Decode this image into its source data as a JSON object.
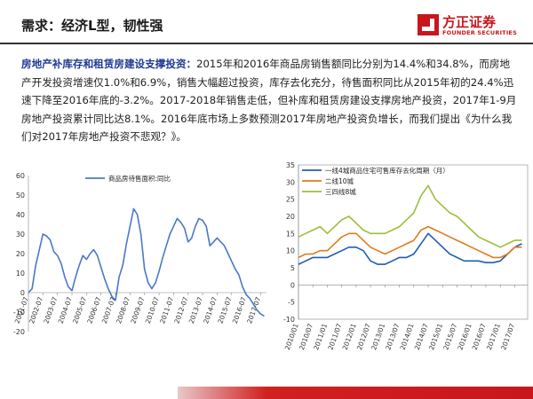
{
  "header": {
    "title": "需求：经济L型，韧性强",
    "logo_cn": "方正证券",
    "logo_en": "FOUNDER SECURITIES"
  },
  "body": {
    "lead": "房地产补库存和租赁房建设支撑投资：",
    "text": "2015年和2016年商品房销售额同比分别为14.4%和34.8%，而房地产开发投资增速仅1.0%和6.9%，销售大幅超过投资，库存去化充分，待售面积同比从2015年初的24.4%迅速下降至2016年底的-3.2%。2017-2018年销售走低，但补库和租赁房建设支撑房地产投资，2017年1-9月房地产投资累计同比达8.1%。2016年底市场上多数预测2017年房地产投资负增长，而我们提出《为什么我们对2017年房地产投资不悲观？》。"
  },
  "colors": {
    "brand": "#c8161d",
    "lead_text": "#1f3a93",
    "chart1_line": "#4a78c8",
    "tier1": "#1f5fb0",
    "tier2": "#e07b1f",
    "tier3": "#9cbf3a"
  },
  "chart_data": [
    {
      "type": "line",
      "title": "",
      "xlabel": "",
      "ylabel": "",
      "ylim": [
        -20,
        60
      ],
      "yticks": [
        -20,
        -10,
        0,
        10,
        20,
        30,
        40,
        50,
        60
      ],
      "xticks": [
        "2001-07",
        "2002-07",
        "2003-07",
        "2004-07",
        "2005-07",
        "2006-07",
        "2007-07",
        "2008-07",
        "2009-07",
        "2010-07",
        "2011-07",
        "2012-07",
        "2013-07",
        "2014-07",
        "2015-07",
        "2016-07",
        "2017-07"
      ],
      "legend_position": "top-center",
      "series": [
        {
          "name": "商品房待售面积:同比",
          "color": "#4a78c8",
          "points": [
            [
              2001.5,
              0
            ],
            [
              2001.75,
              2
            ],
            [
              2002.0,
              14
            ],
            [
              2002.25,
              22
            ],
            [
              2002.5,
              30
            ],
            [
              2002.75,
              29
            ],
            [
              2003.0,
              27
            ],
            [
              2003.25,
              21
            ],
            [
              2003.5,
              19
            ],
            [
              2003.75,
              15
            ],
            [
              2004.0,
              8
            ],
            [
              2004.25,
              3
            ],
            [
              2004.5,
              1
            ],
            [
              2004.75,
              8
            ],
            [
              2005.0,
              14
            ],
            [
              2005.25,
              19
            ],
            [
              2005.5,
              17
            ],
            [
              2005.75,
              20
            ],
            [
              2006.0,
              22
            ],
            [
              2006.25,
              19
            ],
            [
              2006.5,
              13
            ],
            [
              2006.75,
              7
            ],
            [
              2007.0,
              2
            ],
            [
              2007.25,
              -2
            ],
            [
              2007.5,
              -4
            ],
            [
              2007.75,
              8
            ],
            [
              2008.0,
              14
            ],
            [
              2008.25,
              25
            ],
            [
              2008.5,
              34
            ],
            [
              2008.75,
              43
            ],
            [
              2009.0,
              40
            ],
            [
              2009.25,
              30
            ],
            [
              2009.5,
              12
            ],
            [
              2009.75,
              5
            ],
            [
              2010.0,
              2
            ],
            [
              2010.25,
              5
            ],
            [
              2010.5,
              11
            ],
            [
              2010.75,
              18
            ],
            [
              2011.0,
              24
            ],
            [
              2011.25,
              30
            ],
            [
              2011.5,
              34
            ],
            [
              2011.75,
              38
            ],
            [
              2012.0,
              36
            ],
            [
              2012.25,
              33
            ],
            [
              2012.5,
              26
            ],
            [
              2012.75,
              28
            ],
            [
              2013.0,
              34
            ],
            [
              2013.25,
              38
            ],
            [
              2013.5,
              37
            ],
            [
              2013.75,
              34
            ],
            [
              2014.0,
              24
            ],
            [
              2014.25,
              26
            ],
            [
              2014.5,
              28
            ],
            [
              2014.75,
              26
            ],
            [
              2015.0,
              24
            ],
            [
              2015.25,
              20
            ],
            [
              2015.5,
              16
            ],
            [
              2015.75,
              12
            ],
            [
              2016.0,
              9
            ],
            [
              2016.25,
              3
            ],
            [
              2016.5,
              -1
            ],
            [
              2016.75,
              -3
            ],
            [
              2017.0,
              -6
            ],
            [
              2017.25,
              -9
            ],
            [
              2017.5,
              -11
            ],
            [
              2017.75,
              -12
            ]
          ]
        }
      ]
    },
    {
      "type": "line",
      "title": "",
      "xlabel": "",
      "ylabel": "",
      "ylim": [
        -10,
        35
      ],
      "yticks": [
        -10,
        -5,
        0,
        5,
        10,
        15,
        20,
        25,
        30,
        35
      ],
      "xticks": [
        "2010/01",
        "2010/07",
        "2011/01",
        "2011/07",
        "2012/01",
        "2012/07",
        "2013/01",
        "2013/07",
        "2014/01",
        "2014/07",
        "2015/01",
        "2015/07",
        "2016/01",
        "2016/07",
        "2017/01",
        "2017/07"
      ],
      "legend_position": "top",
      "legend": [
        "一线4城商品住宅可售库存去化周期（月）",
        "二线10城",
        "三四线8城"
      ],
      "series": [
        {
          "name": "一线4城商品住宅可售库存去化周期（月）",
          "color": "#1f5fb0",
          "points": [
            [
              2010.0,
              6
            ],
            [
              2010.25,
              7
            ],
            [
              2010.5,
              8
            ],
            [
              2010.75,
              8
            ],
            [
              2011.0,
              8
            ],
            [
              2011.25,
              9
            ],
            [
              2011.5,
              10
            ],
            [
              2011.75,
              11
            ],
            [
              2012.0,
              11
            ],
            [
              2012.25,
              10
            ],
            [
              2012.5,
              7
            ],
            [
              2012.75,
              6
            ],
            [
              2013.0,
              6
            ],
            [
              2013.25,
              7
            ],
            [
              2013.5,
              8
            ],
            [
              2013.75,
              8
            ],
            [
              2014.0,
              9
            ],
            [
              2014.25,
              12
            ],
            [
              2014.5,
              15
            ],
            [
              2014.75,
              13
            ],
            [
              2015.0,
              11
            ],
            [
              2015.25,
              9
            ],
            [
              2015.5,
              8
            ],
            [
              2015.75,
              7
            ],
            [
              2016.0,
              7
            ],
            [
              2016.25,
              7
            ],
            [
              2016.5,
              6.5
            ],
            [
              2016.75,
              6.5
            ],
            [
              2017.0,
              7
            ],
            [
              2017.25,
              9
            ],
            [
              2017.5,
              11
            ],
            [
              2017.75,
              12
            ]
          ]
        },
        {
          "name": "二线10城",
          "color": "#e07b1f",
          "points": [
            [
              2010.0,
              8
            ],
            [
              2010.25,
              9
            ],
            [
              2010.5,
              9
            ],
            [
              2010.75,
              10
            ],
            [
              2011.0,
              10
            ],
            [
              2011.25,
              12
            ],
            [
              2011.5,
              14
            ],
            [
              2011.75,
              15
            ],
            [
              2012.0,
              15
            ],
            [
              2012.25,
              13
            ],
            [
              2012.5,
              11
            ],
            [
              2012.75,
              10
            ],
            [
              2013.0,
              9
            ],
            [
              2013.25,
              10
            ],
            [
              2013.5,
              11
            ],
            [
              2013.75,
              12
            ],
            [
              2014.0,
              13
            ],
            [
              2014.25,
              16
            ],
            [
              2014.5,
              17
            ],
            [
              2014.75,
              16
            ],
            [
              2015.0,
              15
            ],
            [
              2015.25,
              14
            ],
            [
              2015.5,
              13
            ],
            [
              2015.75,
              12
            ],
            [
              2016.0,
              11
            ],
            [
              2016.25,
              10
            ],
            [
              2016.5,
              9
            ],
            [
              2016.75,
              8
            ],
            [
              2017.0,
              8
            ],
            [
              2017.25,
              9
            ],
            [
              2017.5,
              11
            ],
            [
              2017.75,
              11
            ]
          ]
        },
        {
          "name": "三四线8城",
          "color": "#9cbf3a",
          "points": [
            [
              2010.0,
              14
            ],
            [
              2010.25,
              15
            ],
            [
              2010.5,
              16
            ],
            [
              2010.75,
              17
            ],
            [
              2011.0,
              15
            ],
            [
              2011.25,
              17
            ],
            [
              2011.5,
              19
            ],
            [
              2011.75,
              20
            ],
            [
              2012.0,
              18
            ],
            [
              2012.25,
              16
            ],
            [
              2012.5,
              15
            ],
            [
              2012.75,
              15
            ],
            [
              2013.0,
              15
            ],
            [
              2013.25,
              16
            ],
            [
              2013.5,
              17
            ],
            [
              2013.75,
              19
            ],
            [
              2014.0,
              21
            ],
            [
              2014.25,
              26
            ],
            [
              2014.5,
              29
            ],
            [
              2014.75,
              25
            ],
            [
              2015.0,
              23
            ],
            [
              2015.25,
              21
            ],
            [
              2015.5,
              20
            ],
            [
              2015.75,
              18
            ],
            [
              2016.0,
              16
            ],
            [
              2016.25,
              14
            ],
            [
              2016.5,
              13
            ],
            [
              2016.75,
              12
            ],
            [
              2017.0,
              11
            ],
            [
              2017.25,
              12
            ],
            [
              2017.5,
              13
            ],
            [
              2017.75,
              13
            ]
          ]
        }
      ]
    }
  ]
}
